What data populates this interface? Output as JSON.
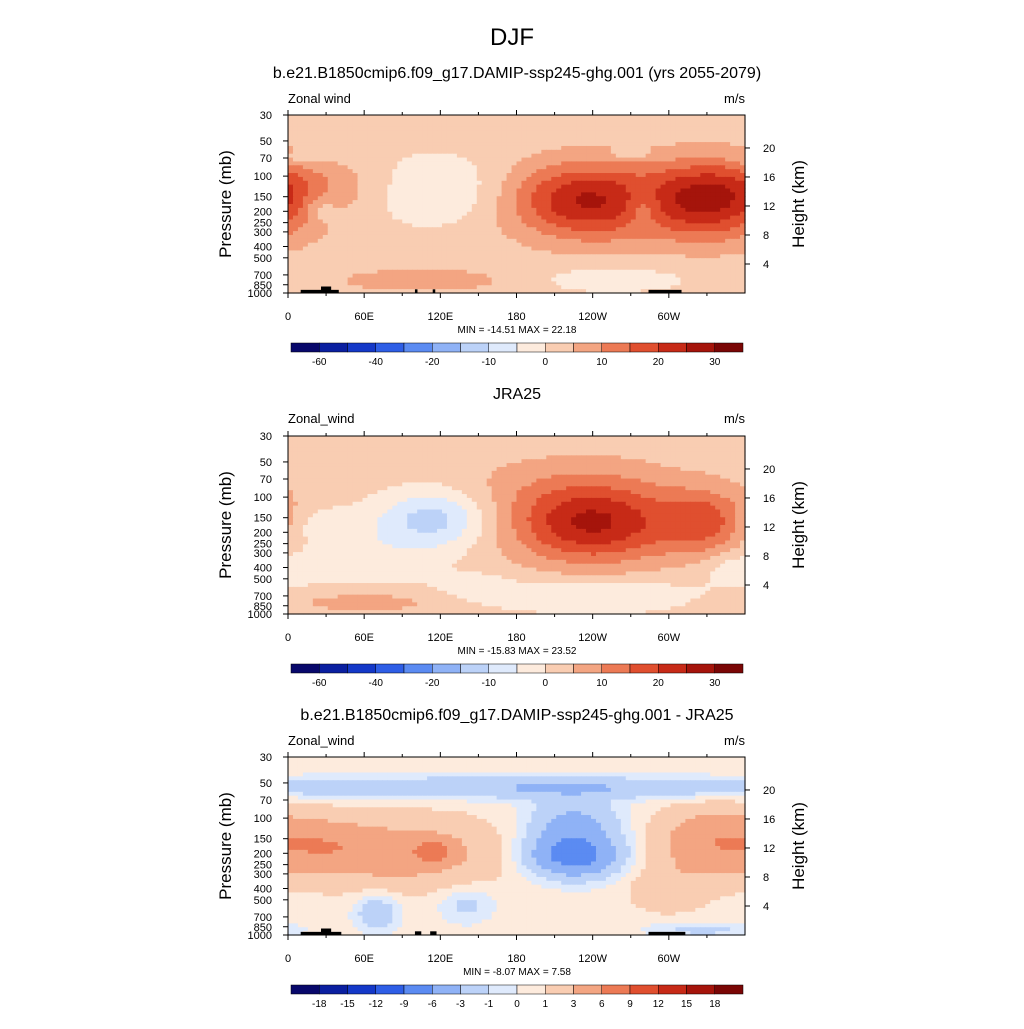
{
  "page": {
    "title": "DJF"
  },
  "colors": {
    "wind_palette": [
      "#08086b",
      "#0a1fa0",
      "#1438c8",
      "#2e5ee6",
      "#5b8bf2",
      "#8fb2f6",
      "#bcd2f8",
      "#dfeafc",
      "#fdebdd",
      "#f9cdb2",
      "#f3a582",
      "#ec7a55",
      "#e04f2f",
      "#c72a17",
      "#a5140b",
      "#7a0605"
    ],
    "diff_palette": [
      "#08086b",
      "#0a1fa0",
      "#1438c8",
      "#2e5ee6",
      "#5b8bf2",
      "#8fb2f6",
      "#bcd2f8",
      "#dfeafc",
      "#fdebdd",
      "#f9cdb2",
      "#f3a582",
      "#ec7a55",
      "#e04f2f",
      "#c72a17",
      "#a5140b",
      "#7a0605"
    ],
    "topography": "#000000"
  },
  "chart_data": [
    {
      "type": "heatmap",
      "title": "b.e21.B1850cmip6.f09_g17.DAMIP-ssp245-ghg.001 (yrs 2055-2079)",
      "left_label": "Zonal wind",
      "right_label": "m/s",
      "ylabel": "Pressure (mb)",
      "ylabel_right": "Height (km)",
      "xlim": [
        0,
        360
      ],
      "ylim_mb": [
        1000,
        30
      ],
      "x_ticks": [
        {
          "v": 0,
          "l": "0"
        },
        {
          "v": 60,
          "l": "60E"
        },
        {
          "v": 120,
          "l": "120E"
        },
        {
          "v": 180,
          "l": "180"
        },
        {
          "v": 240,
          "l": "120W"
        },
        {
          "v": 300,
          "l": "60W"
        }
      ],
      "y_ticks": [
        {
          "v": 30,
          "l": "30"
        },
        {
          "v": 50,
          "l": "50"
        },
        {
          "v": 70,
          "l": "70"
        },
        {
          "v": 100,
          "l": "100"
        },
        {
          "v": 150,
          "l": "150"
        },
        {
          "v": 200,
          "l": "200"
        },
        {
          "v": 250,
          "l": "250"
        },
        {
          "v": 300,
          "l": "300"
        },
        {
          "v": 400,
          "l": "400"
        },
        {
          "v": 500,
          "l": "500"
        },
        {
          "v": 700,
          "l": "700"
        },
        {
          "v": 850,
          "l": "850"
        },
        {
          "v": 1000,
          "l": "1000"
        }
      ],
      "height_ticks_km": [
        {
          "v": 4,
          "l": "4"
        },
        {
          "v": 8,
          "l": "8"
        },
        {
          "v": 12,
          "l": "12"
        },
        {
          "v": 16,
          "l": "16"
        },
        {
          "v": 20,
          "l": "20"
        }
      ],
      "stats_text": "MIN = -14.51  MAX =  22.18",
      "levels": [
        -70,
        -60,
        -50,
        -40,
        -30,
        -20,
        -15,
        -10,
        -5,
        0,
        5,
        10,
        15,
        20,
        25,
        30,
        35
      ],
      "colorbar_labels": [
        {
          "i": 1,
          "l": "-60"
        },
        {
          "i": 3,
          "l": "-40"
        },
        {
          "i": 5,
          "l": "-20"
        },
        {
          "i": 7,
          "l": "-10"
        },
        {
          "i": 9,
          "l": "0"
        },
        {
          "i": 11,
          "l": "10"
        },
        {
          "i": 13,
          "l": "20"
        },
        {
          "i": 15,
          "l": "30"
        }
      ],
      "palette": "wind_palette",
      "background_value": 2,
      "features": [
        {
          "lon": 115,
          "p": 130,
          "w": 35,
          "h": 0.45,
          "a": -9
        },
        {
          "lon": 240,
          "p": 165,
          "w": 45,
          "h": 0.55,
          "a": 21
        },
        {
          "lon": 335,
          "p": 160,
          "w": 35,
          "h": 0.55,
          "a": 22
        },
        {
          "lon": 220,
          "p": 150,
          "w": 25,
          "h": 0.4,
          "a": 3
        },
        {
          "lon": 40,
          "p": 120,
          "w": 60,
          "h": 0.35,
          "a": 4
        },
        {
          "lon": 280,
          "p": 180,
          "w": 10,
          "h": 0.3,
          "a": -8
        },
        {
          "lon": 25,
          "p": 190,
          "w": 10,
          "h": 0.2,
          "a": -6
        },
        {
          "lon": 110,
          "p": 780,
          "w": 55,
          "h": 0.18,
          "a": 6
        },
        {
          "lon": 250,
          "p": 760,
          "w": 50,
          "h": 0.2,
          "a": -5
        },
        {
          "lon": 10,
          "p": 70,
          "w": 12,
          "h": 0.08,
          "a": -5
        },
        {
          "lon": 270,
          "p": 65,
          "w": 12,
          "h": 0.08,
          "a": -5
        }
      ],
      "topography": [
        {
          "lon0": 10,
          "lon1": 40,
          "p": 940
        },
        {
          "lon0": 26,
          "lon1": 34,
          "p": 880
        },
        {
          "lon0": 100,
          "lon1": 102,
          "p": 930
        },
        {
          "lon0": 114,
          "lon1": 116,
          "p": 930
        },
        {
          "lon0": 284,
          "lon1": 310,
          "p": 940
        }
      ]
    },
    {
      "type": "heatmap",
      "title": "JRA25",
      "left_label": "Zonal_wind",
      "right_label": "m/s",
      "ylabel": "Pressure (mb)",
      "ylabel_right": "Height (km)",
      "xlim": [
        0,
        360
      ],
      "ylim_mb": [
        1000,
        30
      ],
      "x_ticks": [
        {
          "v": 0,
          "l": "0"
        },
        {
          "v": 60,
          "l": "60E"
        },
        {
          "v": 120,
          "l": "120E"
        },
        {
          "v": 180,
          "l": "180"
        },
        {
          "v": 240,
          "l": "120W"
        },
        {
          "v": 300,
          "l": "60W"
        }
      ],
      "y_ticks": [
        {
          "v": 30,
          "l": "30"
        },
        {
          "v": 50,
          "l": "50"
        },
        {
          "v": 70,
          "l": "70"
        },
        {
          "v": 100,
          "l": "100"
        },
        {
          "v": 150,
          "l": "150"
        },
        {
          "v": 200,
          "l": "200"
        },
        {
          "v": 250,
          "l": "250"
        },
        {
          "v": 300,
          "l": "300"
        },
        {
          "v": 400,
          "l": "400"
        },
        {
          "v": 500,
          "l": "500"
        },
        {
          "v": 700,
          "l": "700"
        },
        {
          "v": 850,
          "l": "850"
        },
        {
          "v": 1000,
          "l": "1000"
        }
      ],
      "height_ticks_km": [
        {
          "v": 4,
          "l": "4"
        },
        {
          "v": 8,
          "l": "8"
        },
        {
          "v": 12,
          "l": "12"
        },
        {
          "v": 16,
          "l": "16"
        },
        {
          "v": 20,
          "l": "20"
        }
      ],
      "stats_text": "MIN = -15.83  MAX =  23.52",
      "levels": [
        -70,
        -60,
        -50,
        -40,
        -30,
        -20,
        -15,
        -10,
        -5,
        0,
        5,
        10,
        15,
        20,
        25,
        30,
        35
      ],
      "colorbar_labels": [
        {
          "i": 1,
          "l": "-60"
        },
        {
          "i": 3,
          "l": "-40"
        },
        {
          "i": 5,
          "l": "-20"
        },
        {
          "i": 7,
          "l": "-10"
        },
        {
          "i": 9,
          "l": "0"
        },
        {
          "i": 11,
          "l": "10"
        },
        {
          "i": 13,
          "l": "20"
        },
        {
          "i": 15,
          "l": "30"
        }
      ],
      "palette": "wind_palette",
      "background_value": 2,
      "features": [
        {
          "lon": 115,
          "p": 150,
          "w": 30,
          "h": 0.4,
          "a": -14
        },
        {
          "lon": 240,
          "p": 170,
          "w": 45,
          "h": 0.55,
          "a": 23
        },
        {
          "lon": 330,
          "p": 165,
          "w": 25,
          "h": 0.45,
          "a": 14
        },
        {
          "lon": 220,
          "p": 80,
          "w": 70,
          "h": 0.5,
          "a": 4
        },
        {
          "lon": 60,
          "p": 300,
          "w": 45,
          "h": 0.5,
          "a": -5
        },
        {
          "lon": 20,
          "p": 170,
          "w": 20,
          "h": 0.25,
          "a": -4
        },
        {
          "lon": 60,
          "p": 780,
          "w": 60,
          "h": 0.18,
          "a": 6
        },
        {
          "lon": 240,
          "p": 700,
          "w": 80,
          "h": 0.25,
          "a": -6
        },
        {
          "lon": 355,
          "p": 400,
          "w": 20,
          "h": 0.2,
          "a": -5
        },
        {
          "lon": 150,
          "p": 600,
          "w": 20,
          "h": 0.2,
          "a": -4
        }
      ],
      "topography": []
    },
    {
      "type": "heatmap",
      "title": "b.e21.B1850cmip6.f09_g17.DAMIP-ssp245-ghg.001 - JRA25",
      "left_label": "Zonal_wind",
      "right_label": "m/s",
      "ylabel": "Pressure (mb)",
      "ylabel_right": "Height (km)",
      "xlim": [
        0,
        360
      ],
      "ylim_mb": [
        1000,
        30
      ],
      "x_ticks": [
        {
          "v": 0,
          "l": "0"
        },
        {
          "v": 60,
          "l": "60E"
        },
        {
          "v": 120,
          "l": "120E"
        },
        {
          "v": 180,
          "l": "180"
        },
        {
          "v": 240,
          "l": "120W"
        },
        {
          "v": 300,
          "l": "60W"
        }
      ],
      "y_ticks": [
        {
          "v": 30,
          "l": "30"
        },
        {
          "v": 50,
          "l": "50"
        },
        {
          "v": 70,
          "l": "70"
        },
        {
          "v": 100,
          "l": "100"
        },
        {
          "v": 150,
          "l": "150"
        },
        {
          "v": 200,
          "l": "200"
        },
        {
          "v": 250,
          "l": "250"
        },
        {
          "v": 300,
          "l": "300"
        },
        {
          "v": 400,
          "l": "400"
        },
        {
          "v": 500,
          "l": "500"
        },
        {
          "v": 700,
          "l": "700"
        },
        {
          "v": 850,
          "l": "850"
        },
        {
          "v": 1000,
          "l": "1000"
        }
      ],
      "height_ticks_km": [
        {
          "v": 4,
          "l": "4"
        },
        {
          "v": 8,
          "l": "8"
        },
        {
          "v": 12,
          "l": "12"
        },
        {
          "v": 16,
          "l": "16"
        },
        {
          "v": 20,
          "l": "20"
        }
      ],
      "stats_text": "MIN = -8.07  MAX =   7.58",
      "levels": [
        -21,
        -18,
        -15,
        -12,
        -9,
        -6,
        -3,
        -1,
        0,
        1,
        3,
        6,
        9,
        12,
        15,
        18,
        21
      ],
      "colorbar_labels": [
        {
          "i": 1,
          "l": "-18"
        },
        {
          "i": 2,
          "l": "-15"
        },
        {
          "i": 3,
          "l": "-12"
        },
        {
          "i": 4,
          "l": "-9"
        },
        {
          "i": 5,
          "l": "-6"
        },
        {
          "i": 6,
          "l": "-3"
        },
        {
          "i": 7,
          "l": "-1"
        },
        {
          "i": 8,
          "l": "0"
        },
        {
          "i": 9,
          "l": "1"
        },
        {
          "i": 10,
          "l": "3"
        },
        {
          "i": 11,
          "l": "6"
        },
        {
          "i": 12,
          "l": "9"
        },
        {
          "i": 13,
          "l": "12"
        },
        {
          "i": 14,
          "l": "15"
        },
        {
          "i": 15,
          "l": "18"
        }
      ],
      "palette": "diff_palette",
      "background_value": 0.5,
      "features": [
        {
          "lon": 180,
          "p": 55,
          "w": 200,
          "h": 0.15,
          "a": -3.5
        },
        {
          "lon": 225,
          "p": 210,
          "w": 25,
          "h": 0.3,
          "a": -8
        },
        {
          "lon": 225,
          "p": 110,
          "w": 25,
          "h": 0.35,
          "a": -4
        },
        {
          "lon": 90,
          "p": 200,
          "w": 50,
          "h": 0.45,
          "a": 4
        },
        {
          "lon": 30,
          "p": 170,
          "w": 25,
          "h": 0.35,
          "a": 3
        },
        {
          "lon": 115,
          "p": 190,
          "w": 10,
          "h": 0.15,
          "a": 5
        },
        {
          "lon": 335,
          "p": 160,
          "w": 30,
          "h": 0.45,
          "a": 5
        },
        {
          "lon": 300,
          "p": 400,
          "w": 20,
          "h": 0.3,
          "a": 2
        },
        {
          "lon": 70,
          "p": 640,
          "w": 12,
          "h": 0.25,
          "a": -3
        },
        {
          "lon": 140,
          "p": 550,
          "w": 15,
          "h": 0.25,
          "a": -2
        },
        {
          "lon": 325,
          "p": 900,
          "w": 30,
          "h": 0.1,
          "a": -2
        }
      ],
      "topography": [
        {
          "lon0": 10,
          "lon1": 42,
          "p": 940
        },
        {
          "lon0": 26,
          "lon1": 34,
          "p": 880
        },
        {
          "lon0": 100,
          "lon1": 105,
          "p": 930
        },
        {
          "lon0": 112,
          "lon1": 117,
          "p": 930
        },
        {
          "lon0": 284,
          "lon1": 313,
          "p": 940
        }
      ]
    }
  ]
}
